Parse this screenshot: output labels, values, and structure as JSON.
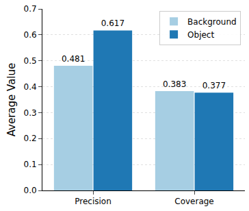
{
  "chart_data": {
    "type": "bar",
    "categories": [
      "Precision",
      "Coverage"
    ],
    "series": [
      {
        "name": "Background",
        "color": "#a6cee3",
        "values": [
          0.481,
          0.383
        ]
      },
      {
        "name": "Object",
        "color": "#1f78b4",
        "values": [
          0.617,
          0.377
        ]
      }
    ],
    "y_label": "Average Value",
    "ylim": [
      0,
      0.7
    ],
    "yticks": [
      {
        "value": 0,
        "label": "0.0"
      },
      0.1,
      0.2,
      0.3,
      0.4,
      0.5,
      0.6,
      0.7
    ],
    "grid": true,
    "legend": "upper right",
    "data_labels": true
  }
}
